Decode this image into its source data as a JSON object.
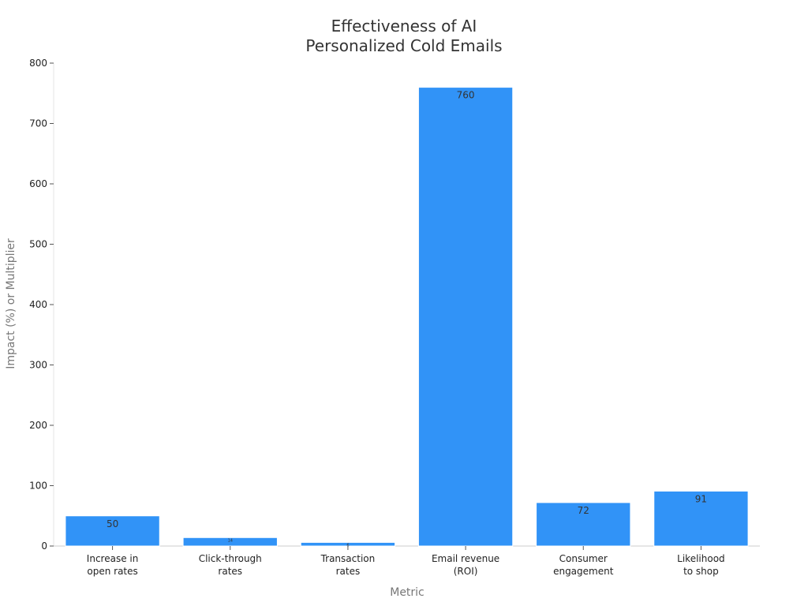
{
  "chart_data": {
    "type": "bar",
    "title_lines": [
      "Effectiveness of AI",
      "Personalized Cold Emails"
    ],
    "xlabel": "Metric",
    "ylabel": "Impact (%) or Multiplier",
    "categories": [
      [
        "Increase in",
        "open rates"
      ],
      [
        "Click-through",
        "rates"
      ],
      [
        "Transaction",
        "rates"
      ],
      [
        "Email revenue",
        "(ROI)"
      ],
      [
        "Consumer",
        "engagement"
      ],
      [
        "Likelihood",
        "to shop"
      ]
    ],
    "values": [
      50,
      14,
      6,
      760,
      72,
      91
    ],
    "data_labels": [
      "50",
      "14",
      "6",
      "760",
      "72",
      "91"
    ],
    "ylim": [
      0,
      800
    ],
    "yticks": [
      0,
      100,
      200,
      300,
      400,
      500,
      600,
      700,
      800
    ],
    "grid": false,
    "bar_color": "#3193f7"
  }
}
